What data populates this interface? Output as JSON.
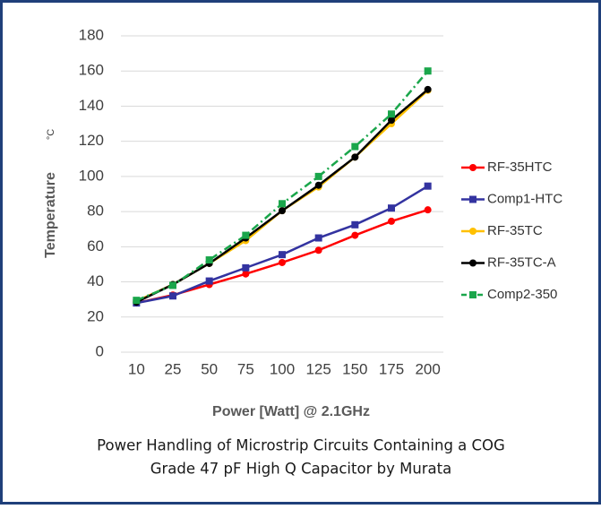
{
  "chart_data": {
    "type": "line",
    "caption": [
      "Power Handling of Microstrip Circuits Containing a COG",
      "Grade 47 pF High Q Capacitor by Murata"
    ],
    "x_label": "Power [Watt] @ 2.1GHz",
    "y_label": "Temperature",
    "y_unit": "°C",
    "categories": [
      "10",
      "25",
      "50",
      "75",
      "100",
      "125",
      "150",
      "175",
      "200"
    ],
    "ylim": [
      0,
      180
    ],
    "yticks": [
      0,
      20,
      40,
      60,
      80,
      100,
      120,
      140,
      160,
      180
    ],
    "grid": true,
    "legend": "right",
    "series": [
      {
        "name": "RF-35HTC",
        "color": "#ff0000",
        "marker": "circle",
        "dashed": false,
        "values": [
          28,
          32.5,
          38.5,
          44.5,
          51,
          58,
          66.5,
          74.5,
          81
        ]
      },
      {
        "name": "Comp1-HTC",
        "color": "#3333a0",
        "marker": "square",
        "dashed": false,
        "values": [
          28,
          32,
          40.5,
          48,
          55.5,
          65,
          72.5,
          82,
          94.5
        ]
      },
      {
        "name": "RF-35TC",
        "color": "#ffc000",
        "marker": "circle",
        "dashed": false,
        "values": [
          29,
          38.5,
          50.5,
          63.5,
          80.5,
          94,
          111,
          130,
          149
        ]
      },
      {
        "name": "RF-35TC-A",
        "color": "#000000",
        "marker": "circle",
        "dashed": false,
        "values": [
          28.5,
          38.5,
          50.5,
          65,
          80.5,
          95,
          111,
          132,
          149.5
        ]
      },
      {
        "name": "Comp2-350",
        "color": "#1aa64b",
        "marker": "square",
        "dashed": true,
        "values": [
          29.5,
          38,
          52.5,
          66.5,
          84.5,
          100,
          117,
          135.5,
          160
        ]
      }
    ]
  }
}
